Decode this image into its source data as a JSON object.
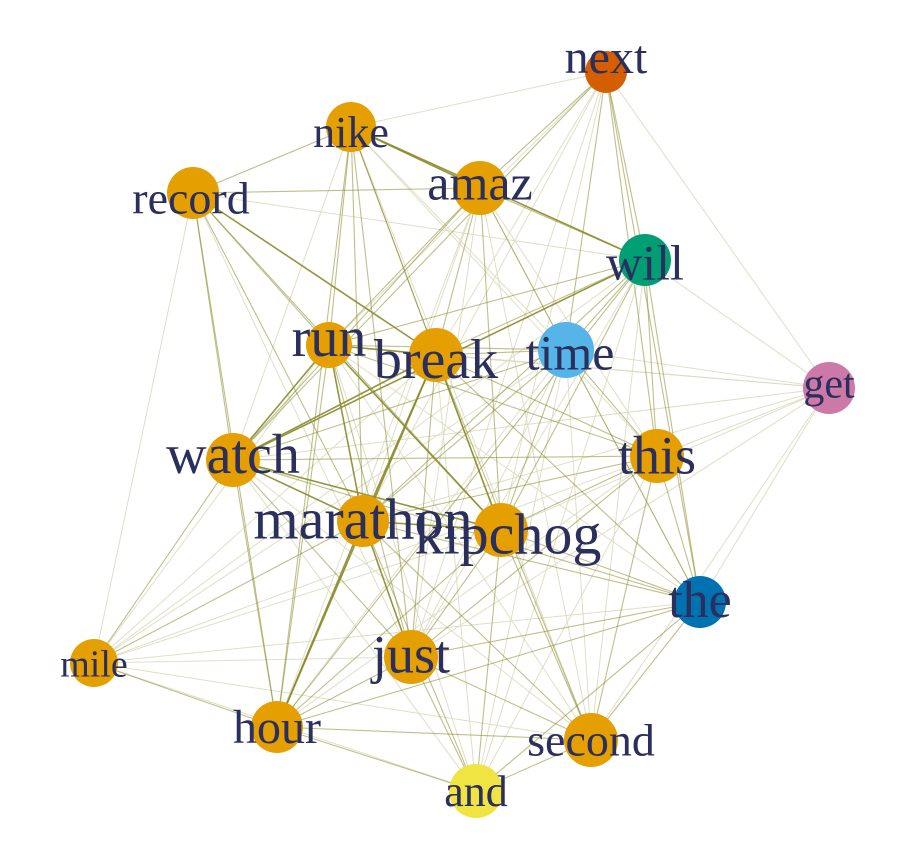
{
  "graph": {
    "palette": {
      "orange": "#E69F00",
      "vermilion": "#D55E00",
      "green": "#009E73",
      "sky": "#56B4E9",
      "blue": "#0072B2",
      "pink": "#CC79A7",
      "yellow": "#F0E442",
      "label": "#2b2f5e",
      "edge_strong": "#8a8a2a",
      "edge_weak": "#dcdcc0"
    },
    "nodes": [
      {
        "id": "next",
        "label": "next",
        "color": "#D55E00"
      },
      {
        "id": "nike",
        "label": "nike",
        "color": "#E69F00"
      },
      {
        "id": "record",
        "label": "record",
        "color": "#E69F00"
      },
      {
        "id": "amaz",
        "label": "amaz",
        "color": "#E69F00"
      },
      {
        "id": "will",
        "label": "will",
        "color": "#009E73"
      },
      {
        "id": "run",
        "label": "run",
        "color": "#E69F00"
      },
      {
        "id": "break",
        "label": "break",
        "color": "#E69F00"
      },
      {
        "id": "time",
        "label": "time",
        "color": "#56B4E9"
      },
      {
        "id": "get",
        "label": "get",
        "color": "#CC79A7"
      },
      {
        "id": "watch",
        "label": "watch",
        "color": "#E69F00"
      },
      {
        "id": "this",
        "label": "this",
        "color": "#E69F00"
      },
      {
        "id": "marathon",
        "label": "marathon",
        "color": "#E69F00"
      },
      {
        "id": "kipchog",
        "label": "kipchog",
        "color": "#E69F00"
      },
      {
        "id": "the",
        "label": "the",
        "color": "#0072B2"
      },
      {
        "id": "mile",
        "label": "mile",
        "color": "#E69F00"
      },
      {
        "id": "just",
        "label": "just",
        "color": "#E69F00"
      },
      {
        "id": "hour",
        "label": "hour",
        "color": "#E69F00"
      },
      {
        "id": "second",
        "label": "second",
        "color": "#E69F00"
      },
      {
        "id": "and",
        "label": "and",
        "color": "#F0E442"
      }
    ],
    "edges": [
      [
        "nike",
        "record",
        2
      ],
      [
        "nike",
        "amaz",
        3
      ],
      [
        "nike",
        "run",
        2
      ],
      [
        "nike",
        "break",
        2
      ],
      [
        "nike",
        "marathon",
        2
      ],
      [
        "nike",
        "kipchog",
        2
      ],
      [
        "nike",
        "watch",
        1
      ],
      [
        "nike",
        "just",
        2
      ],
      [
        "nike",
        "hour",
        2
      ],
      [
        "nike",
        "will",
        3
      ],
      [
        "nike",
        "next",
        1
      ],
      [
        "nike",
        "time",
        1
      ],
      [
        "nike",
        "this",
        1
      ],
      [
        "nike",
        "second",
        1
      ],
      [
        "record",
        "amaz",
        2
      ],
      [
        "record",
        "run",
        2
      ],
      [
        "record",
        "break",
        3
      ],
      [
        "record",
        "watch",
        2
      ],
      [
        "record",
        "marathon",
        2
      ],
      [
        "record",
        "kipchog",
        2
      ],
      [
        "record",
        "hour",
        2
      ],
      [
        "record",
        "will",
        1
      ],
      [
        "record",
        "mile",
        1
      ],
      [
        "record",
        "just",
        1
      ],
      [
        "amaz",
        "next",
        2
      ],
      [
        "amaz",
        "will",
        2
      ],
      [
        "amaz",
        "run",
        2
      ],
      [
        "amaz",
        "break",
        2
      ],
      [
        "amaz",
        "time",
        2
      ],
      [
        "amaz",
        "watch",
        2
      ],
      [
        "amaz",
        "this",
        1
      ],
      [
        "amaz",
        "kipchog",
        2
      ],
      [
        "amaz",
        "marathon",
        1
      ],
      [
        "amaz",
        "just",
        1
      ],
      [
        "amaz",
        "hour",
        1
      ],
      [
        "amaz",
        "second",
        1
      ],
      [
        "amaz",
        "the",
        1
      ],
      [
        "next",
        "will",
        2
      ],
      [
        "next",
        "time",
        2
      ],
      [
        "next",
        "this",
        2
      ],
      [
        "next",
        "the",
        2
      ],
      [
        "next",
        "watch",
        2
      ],
      [
        "next",
        "run",
        1
      ],
      [
        "next",
        "break",
        1
      ],
      [
        "next",
        "kipchog",
        1
      ],
      [
        "next",
        "get",
        1
      ],
      [
        "next",
        "marathon",
        1
      ],
      [
        "next",
        "just",
        1
      ],
      [
        "will",
        "run",
        2
      ],
      [
        "will",
        "break",
        2
      ],
      [
        "will",
        "time",
        2
      ],
      [
        "will",
        "watch",
        3
      ],
      [
        "will",
        "this",
        2
      ],
      [
        "will",
        "the",
        2
      ],
      [
        "will",
        "get",
        1
      ],
      [
        "will",
        "kipchog",
        2
      ],
      [
        "will",
        "marathon",
        2
      ],
      [
        "will",
        "just",
        1
      ],
      [
        "will",
        "hour",
        2
      ],
      [
        "will",
        "second",
        1
      ],
      [
        "will",
        "and",
        1
      ],
      [
        "will",
        "mile",
        1
      ],
      [
        "run",
        "break",
        3
      ],
      [
        "run",
        "watch",
        3
      ],
      [
        "run",
        "marathon",
        3
      ],
      [
        "run",
        "kipchog",
        3
      ],
      [
        "run",
        "time",
        2
      ],
      [
        "run",
        "this",
        2
      ],
      [
        "run",
        "just",
        2
      ],
      [
        "run",
        "hour",
        2
      ],
      [
        "run",
        "mile",
        1
      ],
      [
        "run",
        "second",
        1
      ],
      [
        "run",
        "the",
        1
      ],
      [
        "run",
        "and",
        1
      ],
      [
        "run",
        "get",
        1
      ],
      [
        "break",
        "time",
        2
      ],
      [
        "break",
        "watch",
        3
      ],
      [
        "break",
        "marathon",
        3
      ],
      [
        "break",
        "kipchog",
        3
      ],
      [
        "break",
        "this",
        2
      ],
      [
        "break",
        "the",
        2
      ],
      [
        "break",
        "just",
        2
      ],
      [
        "break",
        "hour",
        3
      ],
      [
        "break",
        "second",
        2
      ],
      [
        "break",
        "and",
        1
      ],
      [
        "break",
        "mile",
        1
      ],
      [
        "break",
        "get",
        1
      ],
      [
        "time",
        "watch",
        2
      ],
      [
        "time",
        "this",
        2
      ],
      [
        "time",
        "the",
        2
      ],
      [
        "time",
        "get",
        1
      ],
      [
        "time",
        "marathon",
        2
      ],
      [
        "time",
        "kipchog",
        2
      ],
      [
        "time",
        "just",
        1
      ],
      [
        "time",
        "hour",
        1
      ],
      [
        "time",
        "second",
        1
      ],
      [
        "time",
        "and",
        1
      ],
      [
        "time",
        "mile",
        1
      ],
      [
        "get",
        "this",
        1
      ],
      [
        "get",
        "the",
        1
      ],
      [
        "get",
        "watch",
        1
      ],
      [
        "get",
        "kipchog",
        1
      ],
      [
        "get",
        "marathon",
        1
      ],
      [
        "get",
        "just",
        1
      ],
      [
        "get",
        "second",
        1
      ],
      [
        "watch",
        "this",
        2
      ],
      [
        "watch",
        "marathon",
        3
      ],
      [
        "watch",
        "kipchog",
        3
      ],
      [
        "watch",
        "mile",
        2
      ],
      [
        "watch",
        "hour",
        2
      ],
      [
        "watch",
        "just",
        2
      ],
      [
        "watch",
        "the",
        2
      ],
      [
        "watch",
        "second",
        1
      ],
      [
        "watch",
        "and",
        1
      ],
      [
        "this",
        "marathon",
        2
      ],
      [
        "this",
        "kipchog",
        2
      ],
      [
        "this",
        "the",
        2
      ],
      [
        "this",
        "just",
        2
      ],
      [
        "this",
        "hour",
        1
      ],
      [
        "this",
        "second",
        2
      ],
      [
        "this",
        "and",
        1
      ],
      [
        "this",
        "mile",
        1
      ],
      [
        "marathon",
        "kipchog",
        3
      ],
      [
        "marathon",
        "the",
        2
      ],
      [
        "marathon",
        "just",
        3
      ],
      [
        "marathon",
        "hour",
        3
      ],
      [
        "marathon",
        "second",
        2
      ],
      [
        "marathon",
        "and",
        2
      ],
      [
        "marathon",
        "mile",
        2
      ],
      [
        "kipchog",
        "the",
        2
      ],
      [
        "kipchog",
        "just",
        2
      ],
      [
        "kipchog",
        "hour",
        2
      ],
      [
        "kipchog",
        "second",
        2
      ],
      [
        "kipchog",
        "and",
        2
      ],
      [
        "kipchog",
        "mile",
        1
      ],
      [
        "the",
        "just",
        2
      ],
      [
        "the",
        "hour",
        2
      ],
      [
        "the",
        "second",
        2
      ],
      [
        "the",
        "and",
        2
      ],
      [
        "the",
        "mile",
        1
      ],
      [
        "mile",
        "hour",
        2
      ],
      [
        "mile",
        "just",
        1
      ],
      [
        "mile",
        "and",
        1
      ],
      [
        "mile",
        "second",
        1
      ],
      [
        "just",
        "hour",
        2
      ],
      [
        "just",
        "second",
        2
      ],
      [
        "just",
        "and",
        2
      ],
      [
        "hour",
        "second",
        2
      ],
      [
        "hour",
        "and",
        2
      ],
      [
        "second",
        "and",
        2
      ]
    ]
  }
}
